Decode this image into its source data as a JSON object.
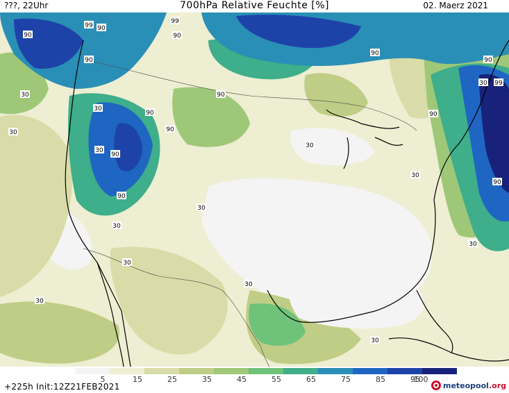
{
  "header": {
    "left": "???, 22Uhr",
    "title": "700hPa Relative Feuchte [%]",
    "date": "02. Maerz 2021"
  },
  "footer": {
    "run_info": "+225h Init:12Z21FEB2021",
    "brand_name": "meteopool",
    "brand_tld": ".org"
  },
  "legend": {
    "tick_labels": [
      "5",
      "15",
      "25",
      "35",
      "45",
      "55",
      "65",
      "75",
      "85",
      "95",
      "100"
    ],
    "colors": [
      "#f4f4f4",
      "#eeeed2",
      "#d9dca8",
      "#bfcd86",
      "#9ec878",
      "#6ec27a",
      "#3fae8a",
      "#2a8fb6",
      "#1f66c2",
      "#1d43a8",
      "#18227a"
    ]
  },
  "map": {
    "contour_labels": [
      {
        "text": "90"
      },
      {
        "text": "99"
      },
      {
        "text": "99"
      },
      {
        "text": "90"
      },
      {
        "text": "90"
      },
      {
        "text": "90"
      },
      {
        "text": "90"
      },
      {
        "text": "99"
      },
      {
        "text": "90"
      },
      {
        "text": "90"
      },
      {
        "text": "90"
      },
      {
        "text": "90"
      },
      {
        "text": "30"
      },
      {
        "text": "30"
      },
      {
        "text": "30"
      },
      {
        "text": "30"
      },
      {
        "text": "90"
      },
      {
        "text": "90"
      },
      {
        "text": "30"
      },
      {
        "text": "90"
      },
      {
        "text": "30"
      },
      {
        "text": "30"
      },
      {
        "text": "30"
      },
      {
        "text": "30"
      },
      {
        "text": "30"
      },
      {
        "text": "30"
      },
      {
        "text": "30"
      },
      {
        "text": "30"
      },
      {
        "text": "30"
      },
      {
        "text": "90"
      }
    ]
  }
}
